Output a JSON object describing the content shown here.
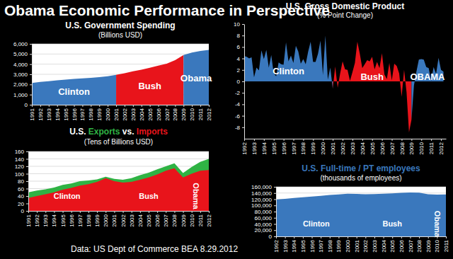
{
  "title": "Obama Economic Performance in Perspective",
  "source": "Data: US Dept of Commerce BEA 8.29.2012",
  "chart_data": [
    {
      "type": "area",
      "title": "U.S. Government Spending",
      "subtitle": "(Billions USD)",
      "xlim": [
        1991,
        2012
      ],
      "xticks": [
        1991,
        1992,
        1993,
        1994,
        1995,
        1996,
        1997,
        1998,
        1999,
        2000,
        2001,
        2002,
        2003,
        2004,
        2005,
        2006,
        2007,
        2008,
        2009,
        2010,
        2011,
        2012
      ],
      "ylim": [
        0,
        6000
      ],
      "yticks": [
        0,
        {
          "value": 1000,
          "label": "1,000"
        },
        {
          "value": 2000,
          "label": "2,000"
        },
        {
          "value": 3000,
          "label": "3,000"
        },
        {
          "value": 4000,
          "label": "4,000"
        },
        {
          "value": 5000,
          "label": "5,000"
        },
        {
          "value": 6000,
          "label": "6,000"
        }
      ],
      "grid": true,
      "series": [
        {
          "name": "Clinton",
          "color": "#3a78bd",
          "x": [
            1991,
            1992,
            1993,
            1994,
            1995,
            1996,
            1997,
            1998,
            1999,
            2000,
            2001
          ],
          "values": [
            2150,
            2250,
            2320,
            2400,
            2480,
            2550,
            2600,
            2650,
            2720,
            2800,
            2950
          ]
        },
        {
          "name": "Bush",
          "color": "#e8141b",
          "x": [
            2001,
            2002,
            2003,
            2004,
            2005,
            2006,
            2007,
            2008,
            2009
          ],
          "values": [
            2950,
            3100,
            3300,
            3450,
            3650,
            3850,
            4050,
            4400,
            4900
          ]
        },
        {
          "name": "Obama",
          "color": "#3a78bd",
          "x": [
            2009,
            2010,
            2011,
            2012
          ],
          "values": [
            4900,
            5150,
            5300,
            5400
          ]
        }
      ]
    },
    {
      "type": "area",
      "title": "U.S. Gross Domestic Product",
      "subtitle": "(% Point Change)",
      "xlim": [
        1992,
        2012.5
      ],
      "xticks": [
        1992,
        1993,
        1994,
        1995,
        1996,
        1997,
        1998,
        1999,
        2000,
        2001,
        2002,
        2003,
        2004,
        2005,
        2006,
        2007,
        2008,
        2009,
        2010,
        2011,
        2012
      ],
      "ylim": [
        -10,
        10
      ],
      "yticks": [
        -8,
        -6,
        -4,
        -2,
        0,
        2,
        4,
        6,
        8,
        10
      ],
      "grid": false,
      "series": [
        {
          "name": "Clinton",
          "color": "#3a78bd",
          "x": [
            1992,
            1992.25,
            1992.5,
            1992.75,
            1993,
            1993.25,
            1993.5,
            1993.75,
            1994,
            1994.25,
            1994.5,
            1994.75,
            1995,
            1995.25,
            1995.5,
            1995.75,
            1996,
            1996.25,
            1996.5,
            1996.75,
            1997,
            1997.25,
            1997.5,
            1997.75,
            1998,
            1998.25,
            1998.5,
            1998.75,
            1999,
            1999.25,
            1999.5,
            1999.75,
            2000,
            2000.25,
            2000.5,
            2000.75,
            2001
          ],
          "values": [
            4.4,
            4.3,
            4.0,
            4.2,
            0.7,
            2.4,
            1.9,
            5.4,
            3.9,
            5.5,
            2.4,
            4.6,
            1.4,
            0.9,
            3.3,
            3.0,
            2.9,
            6.8,
            3.5,
            4.5,
            3.2,
            6.2,
            5.2,
            3.1,
            3.9,
            3.0,
            5.2,
            6.9,
            3.4,
            3.4,
            4.8,
            7.1,
            1.1,
            8.0,
            0.3,
            2.4,
            -1.3
          ]
        },
        {
          "name": "Bush",
          "color": "#e8141b",
          "x": [
            2001,
            2001.25,
            2001.5,
            2001.75,
            2002,
            2002.25,
            2002.5,
            2002.75,
            2003,
            2003.25,
            2003.5,
            2003.75,
            2004,
            2004.25,
            2004.5,
            2004.75,
            2005,
            2005.25,
            2005.5,
            2005.75,
            2006,
            2006.25,
            2006.5,
            2006.75,
            2007,
            2007.25,
            2007.5,
            2007.75,
            2008,
            2008.25,
            2008.5,
            2008.75,
            2009
          ],
          "values": [
            -1.3,
            2.6,
            -1.1,
            1.4,
            3.5,
            2.1,
            2.0,
            0.1,
            1.6,
            3.2,
            6.9,
            4.8,
            2.3,
            3.0,
            3.7,
            3.5,
            4.3,
            2.1,
            3.4,
            2.3,
            4.9,
            1.2,
            0.4,
            3.2,
            0.2,
            3.1,
            2.7,
            1.4,
            -2.7,
            2.0,
            -1.9,
            -8.9,
            -6.7
          ]
        },
        {
          "name": "OBAMA",
          "color": "#3a78bd",
          "x": [
            2009,
            2009.25,
            2009.5,
            2009.75,
            2010,
            2010.25,
            2010.5,
            2010.75,
            2011,
            2011.25,
            2011.5,
            2011.75,
            2012,
            2012.25
          ],
          "values": [
            -6.7,
            -0.7,
            1.7,
            3.8,
            3.9,
            3.8,
            2.5,
            2.3,
            0.1,
            2.5,
            1.3,
            4.1,
            2.0,
            1.7
          ]
        }
      ]
    },
    {
      "type": "area",
      "title": "U.S. Exports vs. Imports",
      "subtitle": "(Tens of Billions USD)",
      "x": [
        1991,
        1992,
        1993,
        1994,
        1995,
        1996,
        1997,
        1998,
        1999,
        2000,
        2001,
        2002,
        2003,
        2004,
        2005,
        2006,
        2007,
        2008,
        2009,
        2010,
        2011,
        2012
      ],
      "xlim": [
        1991,
        2012
      ],
      "xticks": [
        1991,
        1992,
        1993,
        1994,
        1995,
        1996,
        1997,
        1998,
        1999,
        2000,
        2001,
        2002,
        2003,
        2004,
        2005,
        2006,
        2007,
        2008,
        2009,
        2010,
        2011,
        2012
      ],
      "ylim": [
        0,
        160
      ],
      "yticks": [
        0,
        20,
        40,
        60,
        80,
        100,
        120,
        140,
        160
      ],
      "grid": true,
      "series": [
        {
          "name": "Exports",
          "color": "#2fb344",
          "values": [
            50,
            55,
            58,
            63,
            70,
            74,
            80,
            82,
            85,
            92,
            86,
            84,
            88,
            96,
            103,
            112,
            120,
            128,
            102,
            118,
            132,
            140
          ]
        },
        {
          "name": "Imports",
          "color": "#e8141b",
          "values": [
            35,
            40,
            45,
            50,
            57,
            62,
            68,
            72,
            78,
            88,
            80,
            76,
            78,
            84,
            90,
            98,
            108,
            115,
            90,
            100,
            108,
            110
          ]
        }
      ],
      "annotations": [
        {
          "text": "Clinton",
          "x": 1995.5
        },
        {
          "text": "Bush",
          "x": 2005
        },
        {
          "text": "Obama",
          "x": 2010.5
        }
      ]
    },
    {
      "type": "area",
      "title": "U.S. Full-time / PT employees",
      "subtitle": "(thousands of employees)",
      "x": [
        1992,
        1993,
        1994,
        1995,
        1996,
        1997,
        1998,
        1999,
        2000,
        2001,
        2002,
        2003,
        2004,
        2005,
        2006,
        2007,
        2008,
        2009,
        2010,
        2011
      ],
      "xlim": [
        1992,
        2011
      ],
      "xticks": [
        1992,
        1993,
        1994,
        1995,
        1996,
        1997,
        1998,
        1999,
        2000,
        2001,
        2002,
        2003,
        2004,
        2005,
        2006,
        2007,
        2008,
        2009,
        2010,
        2011
      ],
      "ylim": [
        0,
        160000
      ],
      "yticks": [
        0,
        {
          "value": 20000,
          "label": "20,000"
        },
        {
          "value": 40000,
          "label": "40,000"
        },
        {
          "value": 60000,
          "label": "60,000"
        },
        {
          "value": 80000,
          "label": "80,000"
        },
        {
          "value": 100000,
          "label": "100,000"
        },
        {
          "value": 120000,
          "label": "120,000"
        },
        {
          "value": 140000,
          "label": "140,000"
        },
        {
          "value": 160000,
          "label": "160,000"
        }
      ],
      "grid": true,
      "series": [
        {
          "name": "U.S. Full-time / PT employees",
          "color": "#3a78bd",
          "values": [
            119000,
            121000,
            124000,
            126500,
            128500,
            131000,
            133500,
            135500,
            137500,
            137000,
            136000,
            136500,
            137500,
            139000,
            140500,
            141500,
            141000,
            136000,
            135000,
            135500
          ]
        }
      ],
      "annotations": [
        {
          "text": "Clinton",
          "x": 1996.5
        },
        {
          "text": "Bush",
          "x": 2005
        },
        {
          "text": "Obama",
          "x": 2010
        }
      ]
    }
  ]
}
